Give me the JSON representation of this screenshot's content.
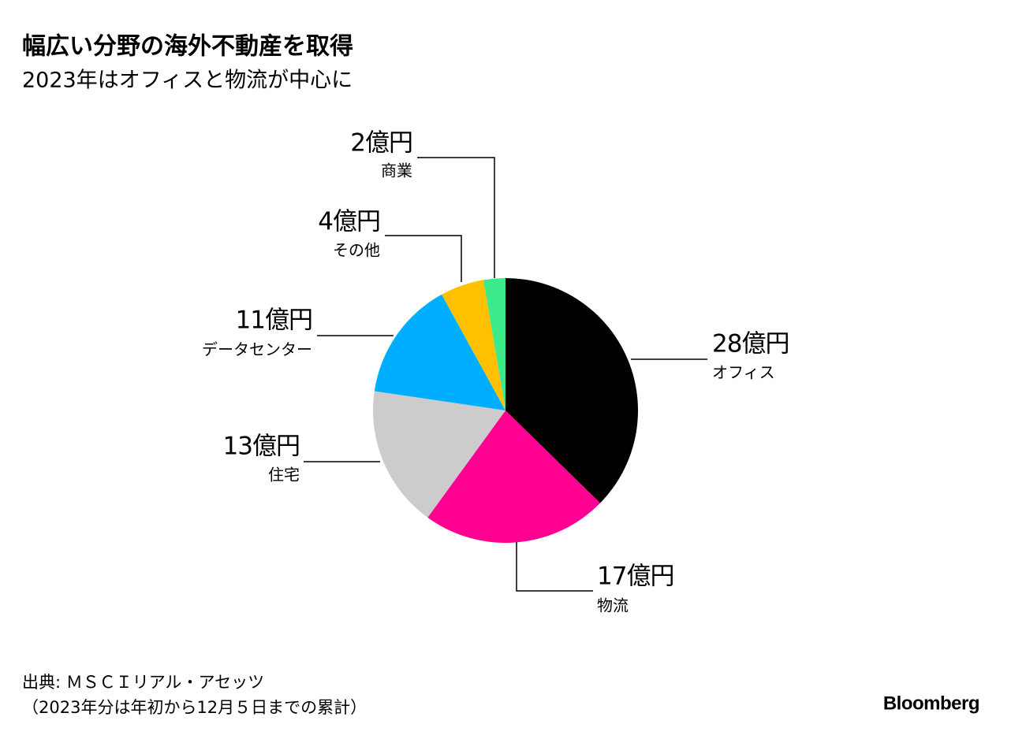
{
  "chart_data": {
    "type": "pie",
    "title": "幅広い分野の海外不動産を取得",
    "subtitle": "2023年はオフィスと物流が中心に",
    "categories": [
      "オフィス",
      "物流",
      "住宅",
      "データセンター",
      "その他",
      "商業"
    ],
    "values": [
      28,
      17,
      13,
      11,
      4,
      2
    ],
    "value_labels": [
      "28億円",
      "17億円",
      "13億円",
      "11億円",
      "4億円",
      "2億円"
    ],
    "colors": [
      "#000000",
      "#ff0090",
      "#cccccc",
      "#00aeff",
      "#ffc000",
      "#3dea8a"
    ],
    "source": [
      "出典: ＭＳＣＩリアル・アセッツ",
      "（2023年分は年初から12月５日までの累計）"
    ],
    "logo": "Bloomberg"
  }
}
